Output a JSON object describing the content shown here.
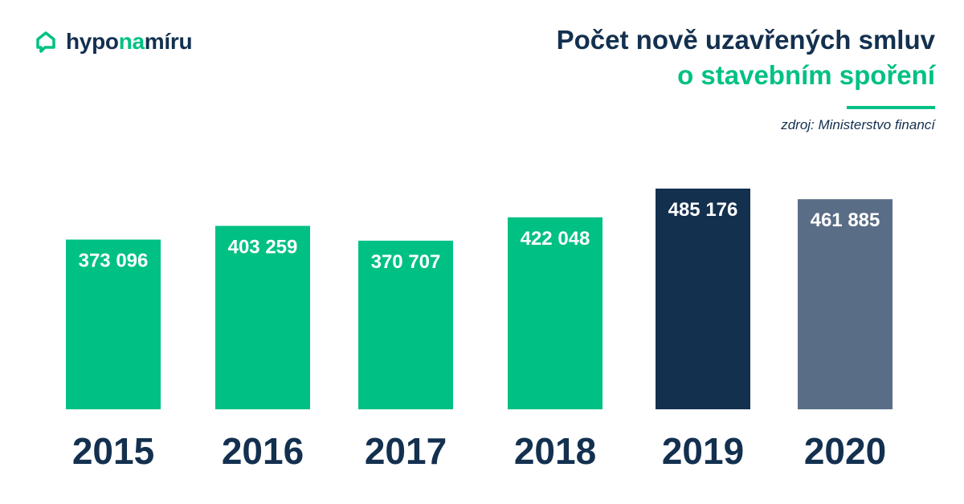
{
  "brand": {
    "name_part1": "hypo",
    "name_part2": "na",
    "name_part3": "míru",
    "icon": "house-chat-icon"
  },
  "header": {
    "title_line1": "Počet nově uzavřených smluv",
    "title_line2": "o stavebním spoření",
    "source": "zdroj: Ministerstvo financí"
  },
  "colors": {
    "green": "#00c084",
    "navy": "#13304f",
    "slate": "#596d86"
  },
  "chart_data": {
    "type": "bar",
    "title": "Počet nově uzavřených smluv o stavebním spoření",
    "categories": [
      "2015",
      "2016",
      "2017",
      "2018",
      "2019",
      "2020"
    ],
    "values": [
      373096,
      403259,
      370707,
      422048,
      485176,
      461885
    ],
    "value_labels": [
      "373 096",
      "403 259",
      "370 707",
      "422 048",
      "485 176",
      "461 885"
    ],
    "bar_colors": [
      "#00c084",
      "#00c084",
      "#00c084",
      "#00c084",
      "#13304f",
      "#596d86"
    ],
    "xlabel": "",
    "ylabel": "",
    "ylim": [
      0,
      485176
    ],
    "grid": false,
    "legend": "none"
  }
}
